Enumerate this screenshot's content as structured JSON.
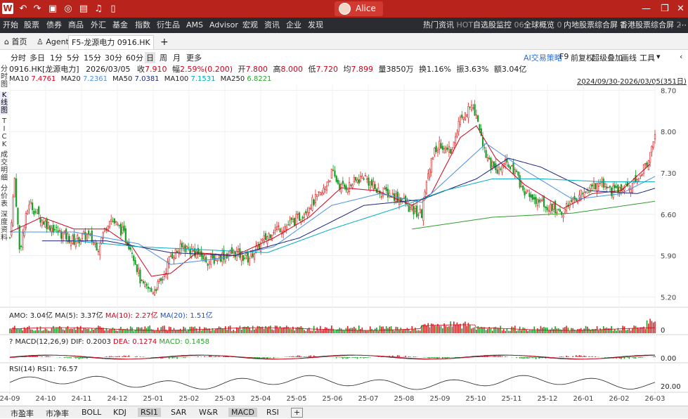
{
  "titlebar": {
    "user": "Alice"
  },
  "menu": {
    "items": [
      "开始",
      "股票",
      "债券",
      "商品",
      "外汇",
      "基金",
      "指数",
      "衍生品",
      "AMS",
      "Advisor",
      "宏观",
      "资讯",
      "企业",
      "发现"
    ],
    "right": [
      {
        "label": "热门资讯",
        "badge": "HOT"
      },
      {
        "label": "自选股监控",
        "badge": "06"
      },
      {
        "label": "全球概览",
        "badge": "0"
      },
      {
        "label": "内地股票综合屏",
        "badge": "1"
      },
      {
        "label": "香港股票综合屏",
        "badge": "2"
      }
    ]
  },
  "tabs": {
    "home": "首页",
    "agent": "Agent",
    "active": "F5-龙源电力 0916.HK",
    "add": "+"
  },
  "periods": [
    "分时",
    "多日",
    "1分",
    "5分",
    "15分",
    "30分",
    "60分",
    "日",
    "周",
    "月",
    "更多"
  ],
  "selected_period": "日",
  "tools": {
    "ai": "AI交易策略",
    "f9": "F9",
    "fq": "前复权",
    "overlay": "超级叠加",
    "draw": "画线",
    "tools": "工具"
  },
  "side_tabs": [
    "分\n时\n图",
    "K\n线\n图",
    "T\nI\nC\nK",
    "成\n交\n明\n细",
    "分\n价\n表",
    "深\n度\n资\n料"
  ],
  "stock": {
    "name": "0916.HK[龙源电力]",
    "date": "2026/03/05",
    "close_label": "收",
    "close": "7.910",
    "chg_label": "幅",
    "chg": "2.59%(0.200)",
    "open_label": "开",
    "open": "7.800",
    "high_label": "高",
    "high": "8.000",
    "low_label": "低",
    "low": "7.720",
    "avg_label": "均",
    "avg": "7.899",
    "vol_label": "量",
    "vol": "3850万",
    "turn_label": "换",
    "turn": "1.16%",
    "amp_label": "振",
    "amp": "3.63%",
    "amt_label": "额",
    "amt": "3.04亿"
  },
  "ma": [
    {
      "label": "MA10",
      "value": "7.4761",
      "color": "#d0021b"
    },
    {
      "label": "MA20",
      "value": "7.2361",
      "color": "#4a90e2"
    },
    {
      "label": "MA50",
      "value": "7.0381",
      "color": "#1a237e"
    },
    {
      "label": "MA100",
      "value": "7.1531",
      "color": "#00acc1"
    },
    {
      "label": "MA250",
      "value": "6.8221",
      "color": "#2e9e2e"
    }
  ],
  "range": "2024/09/30-2026/03/05(351日)",
  "amo": {
    "label": "AMO: 3.04亿",
    "ma5": "MA(5): 3.37亿",
    "ma10": "MA(10): 2.27亿",
    "ma20": "MA(20): 1.51亿",
    "axis": "0"
  },
  "macd": {
    "q": "?",
    "label": "MACD(12,26,9)",
    "dif": "DIF: 0.2003",
    "dea": "DEA: 0.1274",
    "macd": "MACD: 0.1458",
    "axis": "0.00"
  },
  "rsi": {
    "label": "RSI(14)",
    "value": "RSI1: 76.57",
    "axis": "20.00"
  },
  "bottom_tabs": [
    "市盈率",
    "市净率",
    "BOLL",
    "KDJ",
    "RSI1",
    "SAR",
    "W&R",
    "MACD",
    "RSI"
  ],
  "bottom_selected": [
    "RSI1",
    "MACD"
  ],
  "chart_data": {
    "type": "candlestick",
    "y_ticks": [
      "8.70",
      "8.00",
      "7.30",
      "6.60",
      "5.90",
      "5.20"
    ],
    "ylim": [
      5.05,
      8.8
    ],
    "x_ticks": [
      "24-09",
      "24-10",
      "24-11",
      "24-12",
      "25-01",
      "25-02",
      "25-03",
      "25-04",
      "25-05",
      "25-06",
      "25-07",
      "25-08",
      "25-09",
      "25-10",
      "25-11",
      "25-12",
      "26-01",
      "26-02",
      "26-03"
    ],
    "close_path": [
      [
        0,
        6.2
      ],
      [
        3,
        7.2
      ],
      [
        6,
        6.0
      ],
      [
        12,
        6.8
      ],
      [
        20,
        6.5
      ],
      [
        30,
        6.3
      ],
      [
        40,
        6.15
      ],
      [
        48,
        6.25
      ],
      [
        55,
        6.05
      ],
      [
        62,
        6.55
      ],
      [
        70,
        6.3
      ],
      [
        76,
        6.0
      ],
      [
        82,
        5.4
      ],
      [
        88,
        5.3
      ],
      [
        94,
        5.45
      ],
      [
        100,
        5.9
      ],
      [
        108,
        6.05
      ],
      [
        116,
        5.95
      ],
      [
        124,
        5.8
      ],
      [
        132,
        5.9
      ],
      [
        140,
        5.95
      ],
      [
        148,
        5.85
      ],
      [
        156,
        6.1
      ],
      [
        164,
        6.35
      ],
      [
        172,
        6.4
      ],
      [
        180,
        6.55
      ],
      [
        186,
        6.75
      ],
      [
        194,
        6.95
      ],
      [
        200,
        7.3
      ],
      [
        206,
        7.05
      ],
      [
        212,
        7.1
      ],
      [
        220,
        7.25
      ],
      [
        228,
        7.0
      ],
      [
        236,
        6.95
      ],
      [
        244,
        6.85
      ],
      [
        250,
        6.65
      ],
      [
        256,
        6.6
      ],
      [
        262,
        7.6
      ],
      [
        268,
        7.8
      ],
      [
        274,
        7.7
      ],
      [
        280,
        8.2
      ],
      [
        286,
        8.45
      ],
      [
        290,
        8.3
      ],
      [
        296,
        7.6
      ],
      [
        302,
        7.3
      ],
      [
        308,
        7.45
      ],
      [
        314,
        7.3
      ],
      [
        320,
        6.95
      ],
      [
        326,
        6.85
      ],
      [
        332,
        6.75
      ],
      [
        338,
        6.7
      ],
      [
        344,
        6.65
      ],
      [
        350,
        6.8
      ],
      [
        356,
        6.95
      ],
      [
        362,
        7.05
      ],
      [
        368,
        7.15
      ],
      [
        374,
        7.0
      ],
      [
        380,
        7.05
      ],
      [
        386,
        7.1
      ],
      [
        392,
        7.25
      ],
      [
        398,
        7.6
      ],
      [
        401,
        7.91
      ]
    ],
    "ma10_path": [
      [
        0,
        6.3
      ],
      [
        20,
        6.55
      ],
      [
        40,
        6.35
      ],
      [
        60,
        6.35
      ],
      [
        76,
        6.05
      ],
      [
        88,
        5.55
      ],
      [
        100,
        5.6
      ],
      [
        116,
        5.95
      ],
      [
        140,
        5.9
      ],
      [
        164,
        6.2
      ],
      [
        186,
        6.55
      ],
      [
        206,
        7.05
      ],
      [
        228,
        7.0
      ],
      [
        250,
        6.75
      ],
      [
        262,
        6.95
      ],
      [
        280,
        7.9
      ],
      [
        290,
        8.1
      ],
      [
        302,
        7.55
      ],
      [
        320,
        7.1
      ],
      [
        344,
        6.7
      ],
      [
        362,
        6.95
      ],
      [
        380,
        7.0
      ],
      [
        398,
        7.45
      ]
    ],
    "ma20_path": [
      [
        0,
        6.3
      ],
      [
        40,
        6.3
      ],
      [
        80,
        6.1
      ],
      [
        100,
        5.75
      ],
      [
        130,
        5.85
      ],
      [
        164,
        6.05
      ],
      [
        200,
        6.75
      ],
      [
        230,
        6.95
      ],
      [
        256,
        6.8
      ],
      [
        280,
        7.4
      ],
      [
        296,
        7.8
      ],
      [
        320,
        7.35
      ],
      [
        350,
        6.85
      ],
      [
        380,
        6.95
      ],
      [
        401,
        7.24
      ]
    ],
    "ma50_path": [
      [
        20,
        6.15
      ],
      [
        60,
        6.15
      ],
      [
        100,
        5.95
      ],
      [
        140,
        5.9
      ],
      [
        180,
        6.2
      ],
      [
        220,
        6.75
      ],
      [
        256,
        6.85
      ],
      [
        290,
        7.2
      ],
      [
        310,
        7.55
      ],
      [
        330,
        7.4
      ],
      [
        360,
        7.0
      ],
      [
        390,
        6.95
      ],
      [
        401,
        7.04
      ]
    ],
    "ma100_path": [
      [
        40,
        6.15
      ],
      [
        80,
        6.05
      ],
      [
        120,
        6.0
      ],
      [
        160,
        5.95
      ],
      [
        200,
        6.35
      ],
      [
        240,
        6.7
      ],
      [
        270,
        7.0
      ],
      [
        300,
        7.2
      ],
      [
        330,
        7.2
      ],
      [
        370,
        7.15
      ],
      [
        401,
        7.15
      ]
    ],
    "ma250_path": [
      [
        250,
        6.35
      ],
      [
        300,
        6.55
      ],
      [
        350,
        6.62
      ],
      [
        401,
        6.82
      ]
    ]
  }
}
